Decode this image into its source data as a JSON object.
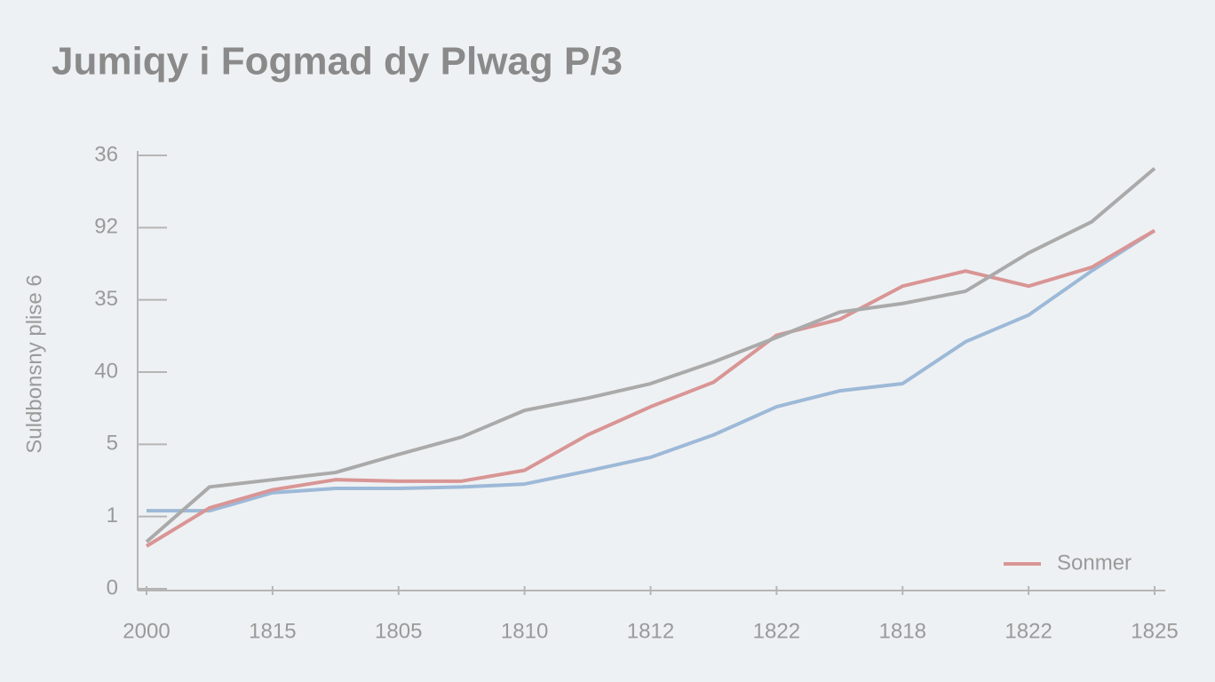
{
  "chart_data": {
    "type": "line",
    "title": "Jumiqy i Fogmad dy Plwag P/3",
    "y_label": "Suldbonsny plise 6",
    "x": [
      0,
      0.5,
      1,
      1.5,
      2,
      2.5,
      3,
      3.5,
      4,
      4.5,
      5,
      5.5,
      6,
      6.5,
      7,
      7.5,
      8
    ],
    "series": [
      {
        "color": "#9db9d8",
        "values": [
          1.08,
          1.08,
          1.33,
          1.39,
          1.39,
          1.41,
          1.45,
          1.63,
          1.82,
          2.13,
          2.52,
          2.74,
          2.84,
          3.42,
          3.79,
          4.4,
          4.96
        ]
      },
      {
        "name": "Sonmer",
        "color": "#d99595",
        "values": [
          0.59,
          1.12,
          1.37,
          1.51,
          1.49,
          1.49,
          1.64,
          2.13,
          2.52,
          2.86,
          3.51,
          3.73,
          4.19,
          4.4,
          4.19,
          4.45,
          4.96
        ]
      },
      {
        "color": "#aaaaaa",
        "values": [
          0.65,
          1.41,
          1.51,
          1.61,
          1.86,
          2.1,
          2.47,
          2.64,
          2.84,
          3.14,
          3.48,
          3.83,
          3.95,
          4.12,
          4.65,
          5.08,
          5.82
        ]
      }
    ],
    "xlim": [
      0,
      8
    ],
    "xticks": [
      {
        "value": 0,
        "label": "2000"
      },
      {
        "value": 1,
        "label": "1815"
      },
      {
        "value": 2,
        "label": "1805"
      },
      {
        "value": 3,
        "label": "1810"
      },
      {
        "value": 4,
        "label": "1812"
      },
      {
        "value": 5,
        "label": "1822"
      },
      {
        "value": 6,
        "label": "1818"
      },
      {
        "value": 7,
        "label": "1822"
      },
      {
        "value": 8,
        "label": "1825"
      }
    ],
    "ylim": [
      0,
      6
    ],
    "yticks": [
      {
        "value": 0,
        "label": "0"
      },
      {
        "value": 1,
        "label": "1"
      },
      {
        "value": 2,
        "label": "5"
      },
      {
        "value": 3,
        "label": "40"
      },
      {
        "value": 4,
        "label": "35"
      },
      {
        "value": 5,
        "label": "92"
      },
      {
        "value": 6,
        "label": "36"
      }
    ],
    "legend": "bottom-right"
  }
}
